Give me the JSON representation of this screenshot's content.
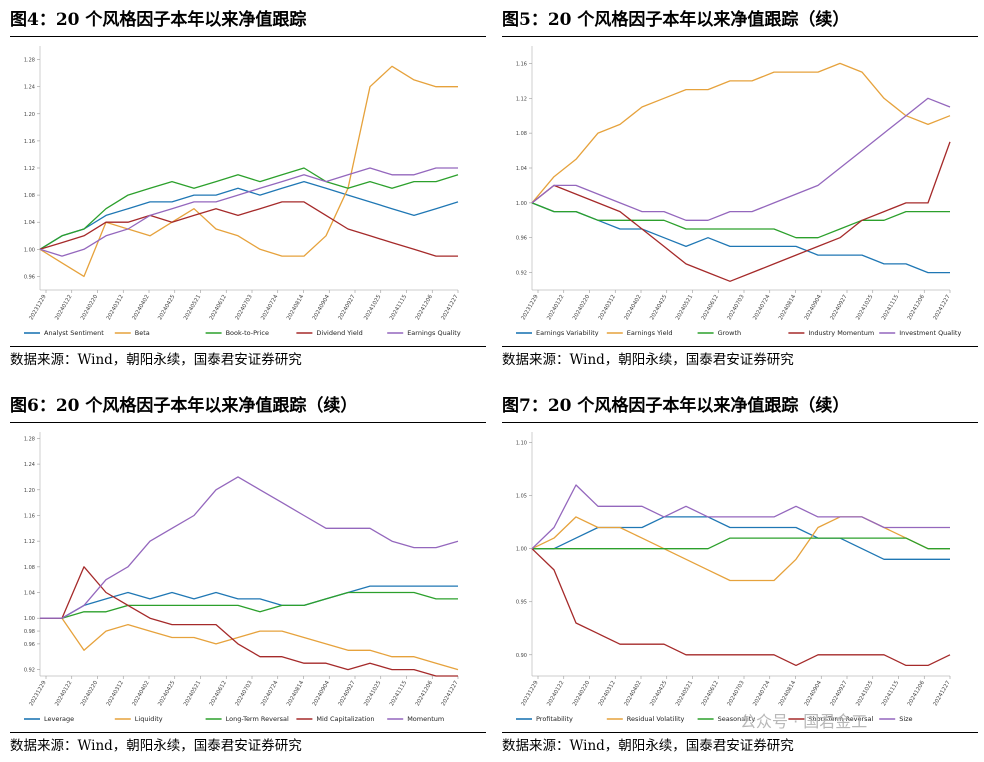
{
  "panels": [
    {
      "title": "图4：20 个风格因子本年以来净值跟踪",
      "source": "数据来源：Wind，朝阳永续，国泰君安证券研究",
      "chart_data": {
        "type": "line",
        "ylim": [
          0.94,
          1.3
        ],
        "yticks": [
          "0.96",
          "1.00",
          "1.04",
          "1.08",
          "1.12",
          "1.16",
          "1.20",
          "1.24",
          "1.28"
        ],
        "ytick_values": [
          0.96,
          1.0,
          1.04,
          1.08,
          1.12,
          1.16,
          1.2,
          1.24,
          1.28
        ],
        "xticks": [
          "20231229",
          "20240122",
          "20240220",
          "20240312",
          "20240402",
          "20240425",
          "20240521",
          "20240612",
          "20240703",
          "20240724",
          "20240814",
          "20240904",
          "20240927",
          "20241025",
          "20241115",
          "20241206",
          "20241227"
        ],
        "x_points": 20,
        "legend_position": "bottom",
        "series": [
          {
            "name": "Analyst Sentiment",
            "color": "#1f77b4",
            "values": [
              1.0,
              1.02,
              1.03,
              1.05,
              1.06,
              1.07,
              1.07,
              1.08,
              1.08,
              1.09,
              1.08,
              1.09,
              1.1,
              1.09,
              1.08,
              1.07,
              1.06,
              1.05,
              1.06,
              1.07
            ]
          },
          {
            "name": "Beta",
            "color": "#e6a23c",
            "values": [
              1.0,
              0.98,
              0.96,
              1.04,
              1.03,
              1.02,
              1.04,
              1.06,
              1.03,
              1.02,
              1.0,
              0.99,
              0.99,
              1.02,
              1.09,
              1.24,
              1.27,
              1.25,
              1.24,
              1.24
            ]
          },
          {
            "name": "Book-to-Price",
            "color": "#2ca02c",
            "values": [
              1.0,
              1.02,
              1.03,
              1.06,
              1.08,
              1.09,
              1.1,
              1.09,
              1.1,
              1.11,
              1.1,
              1.11,
              1.12,
              1.1,
              1.09,
              1.1,
              1.09,
              1.1,
              1.1,
              1.11
            ]
          },
          {
            "name": "Dividend Yield",
            "color": "#a52a2a",
            "values": [
              1.0,
              1.01,
              1.02,
              1.04,
              1.04,
              1.05,
              1.04,
              1.05,
              1.06,
              1.05,
              1.06,
              1.07,
              1.07,
              1.05,
              1.03,
              1.02,
              1.01,
              1.0,
              0.99,
              0.99
            ]
          },
          {
            "name": "Earnings Quality",
            "color": "#9467bd",
            "values": [
              1.0,
              0.99,
              1.0,
              1.02,
              1.03,
              1.05,
              1.06,
              1.07,
              1.07,
              1.08,
              1.09,
              1.1,
              1.11,
              1.1,
              1.11,
              1.12,
              1.11,
              1.11,
              1.12,
              1.12
            ]
          }
        ]
      }
    },
    {
      "title": "图5：20 个风格因子本年以来净值跟踪（续）",
      "source": "数据来源：Wind，朝阳永续，国泰君安证券研究",
      "chart_data": {
        "type": "line",
        "ylim": [
          0.9,
          1.18
        ],
        "yticks": [
          "0.92",
          "0.96",
          "1.00",
          "1.04",
          "1.08",
          "1.12",
          "1.16"
        ],
        "ytick_values": [
          0.92,
          0.96,
          1.0,
          1.04,
          1.08,
          1.12,
          1.16
        ],
        "xticks": [
          "20231229",
          "20240122",
          "20240220",
          "20240312",
          "20240402",
          "20240425",
          "20240521",
          "20240612",
          "20240703",
          "20240724",
          "20240814",
          "20240904",
          "20240927",
          "20241025",
          "20241115",
          "20241206",
          "20241227"
        ],
        "x_points": 20,
        "legend_position": "bottom",
        "series": [
          {
            "name": "Earnings Variability",
            "color": "#1f77b4",
            "values": [
              1.0,
              0.99,
              0.99,
              0.98,
              0.97,
              0.97,
              0.96,
              0.95,
              0.96,
              0.95,
              0.95,
              0.95,
              0.95,
              0.94,
              0.94,
              0.94,
              0.93,
              0.93,
              0.92,
              0.92
            ]
          },
          {
            "name": "Earnings Yield",
            "color": "#e6a23c",
            "values": [
              1.0,
              1.03,
              1.05,
              1.08,
              1.09,
              1.11,
              1.12,
              1.13,
              1.13,
              1.14,
              1.14,
              1.15,
              1.15,
              1.15,
              1.16,
              1.15,
              1.12,
              1.1,
              1.09,
              1.1
            ]
          },
          {
            "name": "Growth",
            "color": "#2ca02c",
            "values": [
              1.0,
              0.99,
              0.99,
              0.98,
              0.98,
              0.98,
              0.98,
              0.97,
              0.97,
              0.97,
              0.97,
              0.97,
              0.96,
              0.96,
              0.97,
              0.98,
              0.98,
              0.99,
              0.99,
              0.99
            ]
          },
          {
            "name": "Industry Momentum",
            "color": "#a52a2a",
            "values": [
              1.0,
              1.02,
              1.01,
              1.0,
              0.99,
              0.97,
              0.95,
              0.93,
              0.92,
              0.91,
              0.92,
              0.93,
              0.94,
              0.95,
              0.96,
              0.98,
              0.99,
              1.0,
              1.0,
              1.07
            ]
          },
          {
            "name": "Investment Quality",
            "color": "#9467bd",
            "values": [
              1.0,
              1.02,
              1.02,
              1.01,
              1.0,
              0.99,
              0.99,
              0.98,
              0.98,
              0.99,
              0.99,
              1.0,
              1.01,
              1.02,
              1.04,
              1.06,
              1.08,
              1.1,
              1.12,
              1.11
            ]
          }
        ]
      }
    },
    {
      "title": "图6：20 个风格因子本年以来净值跟踪（续）",
      "source": "数据来源：Wind，朝阳永续，国泰君安证券研究",
      "chart_data": {
        "type": "line",
        "ylim": [
          0.91,
          1.29
        ],
        "yticks": [
          "0.92",
          "0.96",
          "0.98",
          "1.00",
          "1.04",
          "1.08",
          "1.12",
          "1.16",
          "1.20",
          "1.24",
          "1.28"
        ],
        "ytick_values": [
          0.92,
          0.96,
          0.98,
          1.0,
          1.04,
          1.08,
          1.12,
          1.16,
          1.2,
          1.24,
          1.28
        ],
        "xticks": [
          "20231229",
          "20240122",
          "20240220",
          "20240312",
          "20240402",
          "20240425",
          "20240521",
          "20240612",
          "20240703",
          "20240724",
          "20240814",
          "20240904",
          "20240927",
          "20241025",
          "20241115",
          "20241206",
          "20241227"
        ],
        "x_points": 20,
        "legend_position": "bottom",
        "series": [
          {
            "name": "Leverage",
            "color": "#1f77b4",
            "values": [
              1.0,
              1.0,
              1.02,
              1.03,
              1.04,
              1.03,
              1.04,
              1.03,
              1.04,
              1.03,
              1.03,
              1.02,
              1.02,
              1.03,
              1.04,
              1.05,
              1.05,
              1.05,
              1.05,
              1.05
            ]
          },
          {
            "name": "Liquidity",
            "color": "#e6a23c",
            "values": [
              1.0,
              1.0,
              0.95,
              0.98,
              0.99,
              0.98,
              0.97,
              0.97,
              0.96,
              0.97,
              0.98,
              0.98,
              0.97,
              0.96,
              0.95,
              0.95,
              0.94,
              0.94,
              0.93,
              0.92
            ]
          },
          {
            "name": "Long-Term Reversal",
            "color": "#2ca02c",
            "values": [
              1.0,
              1.0,
              1.01,
              1.01,
              1.02,
              1.02,
              1.02,
              1.02,
              1.02,
              1.02,
              1.01,
              1.02,
              1.02,
              1.03,
              1.04,
              1.04,
              1.04,
              1.04,
              1.03,
              1.03
            ]
          },
          {
            "name": "Mid Capitalization",
            "color": "#a52a2a",
            "values": [
              1.0,
              1.0,
              1.08,
              1.04,
              1.02,
              1.0,
              0.99,
              0.99,
              0.99,
              0.96,
              0.94,
              0.94,
              0.93,
              0.93,
              0.92,
              0.93,
              0.92,
              0.92,
              0.91,
              0.91
            ]
          },
          {
            "name": "Momentum",
            "color": "#9467bd",
            "values": [
              1.0,
              1.0,
              1.02,
              1.06,
              1.08,
              1.12,
              1.14,
              1.16,
              1.2,
              1.22,
              1.2,
              1.18,
              1.16,
              1.14,
              1.14,
              1.14,
              1.12,
              1.11,
              1.11,
              1.12
            ]
          }
        ]
      }
    },
    {
      "title": "图7：20 个风格因子本年以来净值跟踪（续）",
      "source": "数据来源：Wind，朝阳永续，国泰君安证券研究",
      "chart_data": {
        "type": "line",
        "ylim": [
          0.88,
          1.11
        ],
        "yticks": [
          "0.90",
          "0.95",
          "1.00",
          "1.05",
          "1.10"
        ],
        "ytick_values": [
          0.9,
          0.95,
          1.0,
          1.05,
          1.1
        ],
        "xticks": [
          "20231229",
          "20240122",
          "20240220",
          "20240312",
          "20240402",
          "20240425",
          "20240521",
          "20240612",
          "20240703",
          "20240724",
          "20240814",
          "20240904",
          "20240927",
          "20241025",
          "20241115",
          "20241206",
          "20241227"
        ],
        "x_points": 20,
        "legend_position": "bottom",
        "series": [
          {
            "name": "Profitability",
            "color": "#1f77b4",
            "values": [
              1.0,
              1.0,
              1.01,
              1.02,
              1.02,
              1.02,
              1.03,
              1.03,
              1.03,
              1.02,
              1.02,
              1.02,
              1.02,
              1.01,
              1.01,
              1.0,
              0.99,
              0.99,
              0.99,
              0.99
            ]
          },
          {
            "name": "Residual Volatility",
            "color": "#e6a23c",
            "values": [
              1.0,
              1.01,
              1.03,
              1.02,
              1.02,
              1.01,
              1.0,
              0.99,
              0.98,
              0.97,
              0.97,
              0.97,
              0.99,
              1.02,
              1.03,
              1.03,
              1.02,
              1.01,
              1.0,
              1.0
            ]
          },
          {
            "name": "Seasonality",
            "color": "#2ca02c",
            "values": [
              1.0,
              1.0,
              1.0,
              1.0,
              1.0,
              1.0,
              1.0,
              1.0,
              1.0,
              1.01,
              1.01,
              1.01,
              1.01,
              1.01,
              1.01,
              1.01,
              1.01,
              1.01,
              1.0,
              1.0
            ]
          },
          {
            "name": "Short-Term Reversal",
            "color": "#a52a2a",
            "values": [
              1.0,
              0.98,
              0.93,
              0.92,
              0.91,
              0.91,
              0.91,
              0.9,
              0.9,
              0.9,
              0.9,
              0.9,
              0.89,
              0.9,
              0.9,
              0.9,
              0.9,
              0.89,
              0.89,
              0.9
            ]
          },
          {
            "name": "Size",
            "color": "#9467bd",
            "values": [
              1.0,
              1.02,
              1.06,
              1.04,
              1.04,
              1.04,
              1.03,
              1.04,
              1.03,
              1.03,
              1.03,
              1.03,
              1.04,
              1.03,
              1.03,
              1.03,
              1.02,
              1.02,
              1.02,
              1.02
            ]
          }
        ]
      }
    }
  ],
  "watermark": "公众号 · 国君金工"
}
